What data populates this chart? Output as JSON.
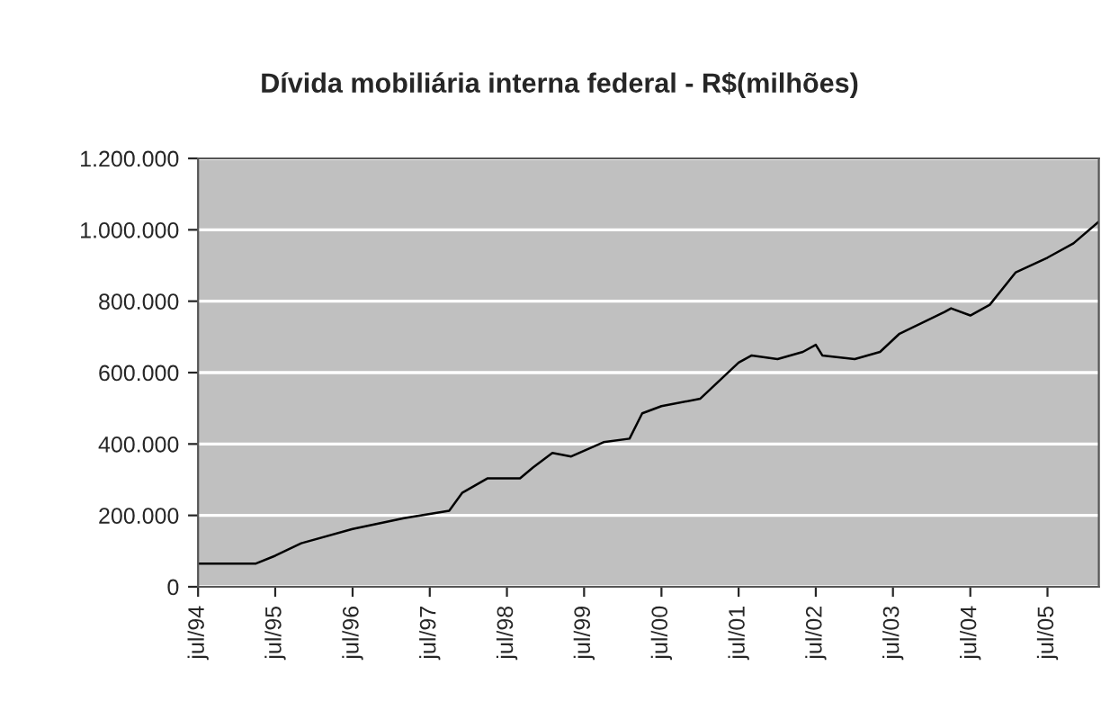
{
  "chart_data": {
    "type": "line",
    "title": "Dívida mobiliária interna federal - R$(milhões)",
    "x": [
      "1994-07",
      "1995-04",
      "1995-07",
      "1995-11",
      "1996-07",
      "1997-03",
      "1997-10",
      "1997-12",
      "1998-04",
      "1998-09",
      "1998-11",
      "1999-02",
      "1999-05",
      "1999-10",
      "2000-02",
      "2000-04",
      "2000-07",
      "2001-01",
      "2001-07",
      "2001-09",
      "2002-01",
      "2002-05",
      "2002-07",
      "2002-08",
      "2003-01",
      "2003-05",
      "2003-08",
      "2004-03",
      "2004-04",
      "2004-07",
      "2004-10",
      "2005-02",
      "2005-07",
      "2005-11",
      "2006-03"
    ],
    "series": [
      {
        "color": "#000000",
        "values": [
          65000,
          65000,
          87000,
          122000,
          162000,
          192000,
          213000,
          263000,
          304000,
          304000,
          334000,
          375000,
          365000,
          405000,
          415000,
          486000,
          506000,
          527000,
          628000,
          648000,
          638000,
          658000,
          678000,
          648000,
          638000,
          658000,
          709000,
          770000,
          780000,
          760000,
          790000,
          881000,
          922000,
          962000,
          1023000
        ]
      }
    ],
    "xlim": [
      "1994-07",
      "2006-03"
    ],
    "xticks": [
      {
        "value": "1994-07",
        "label": "jul/94"
      },
      {
        "value": "1995-07",
        "label": "jul/95"
      },
      {
        "value": "1996-07",
        "label": "jul/96"
      },
      {
        "value": "1997-07",
        "label": "jul/97"
      },
      {
        "value": "1998-07",
        "label": "jul/98"
      },
      {
        "value": "1999-07",
        "label": "jul/99"
      },
      {
        "value": "2000-07",
        "label": "jul/00"
      },
      {
        "value": "2001-07",
        "label": "jul/01"
      },
      {
        "value": "2002-07",
        "label": "jul/02"
      },
      {
        "value": "2003-07",
        "label": "jul/03"
      },
      {
        "value": "2004-07",
        "label": "jul/04"
      },
      {
        "value": "2005-07",
        "label": "jul/05"
      }
    ],
    "ylim": [
      0,
      1200000
    ],
    "yticks": [
      {
        "value": 0,
        "label": "0"
      },
      {
        "value": 200000,
        "label": "200.000"
      },
      {
        "value": 400000,
        "label": "400.000"
      },
      {
        "value": 600000,
        "label": "600.000"
      },
      {
        "value": 800000,
        "label": "800.000"
      },
      {
        "value": 1000000,
        "label": "1.000.000"
      },
      {
        "value": 1200000,
        "label": "1.200.000"
      }
    ],
    "grid": "y",
    "marker": "none",
    "line_style": "solid"
  }
}
